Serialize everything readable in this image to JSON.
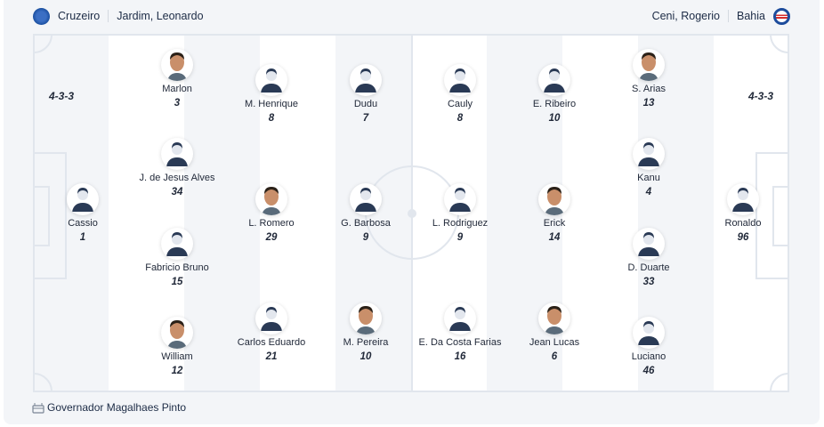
{
  "home": {
    "team": "Cruzeiro",
    "coach": "Jardim, Leonardo",
    "formation": "4-3-3",
    "crest_color": "#1a4fa0"
  },
  "away": {
    "team": "Bahia",
    "coach": "Ceni, Rogerio",
    "formation": "4-3-3",
    "crest_color": "#1d4c9c"
  },
  "venue": "Governador Magalhaes Pinto",
  "players": [
    {
      "name": "Cassio",
      "number": "1",
      "photo": false,
      "col": 0,
      "row": "mid"
    },
    {
      "name": "Marlon",
      "number": "3",
      "photo": true,
      "col": 1,
      "row": "r4a"
    },
    {
      "name": "J. de Jesus Alves",
      "number": "34",
      "photo": false,
      "col": 1,
      "row": "r4b"
    },
    {
      "name": "Fabricio Bruno",
      "number": "15",
      "photo": false,
      "col": 1,
      "row": "r4c"
    },
    {
      "name": "William",
      "number": "12",
      "photo": true,
      "col": 1,
      "row": "r4d"
    },
    {
      "name": "M. Henrique",
      "number": "8",
      "photo": false,
      "col": 2,
      "row": "r3a"
    },
    {
      "name": "L. Romero",
      "number": "29",
      "photo": true,
      "col": 2,
      "row": "mid"
    },
    {
      "name": "Carlos Eduardo",
      "number": "21",
      "photo": false,
      "col": 2,
      "row": "r3c"
    },
    {
      "name": "Dudu",
      "number": "7",
      "photo": false,
      "col": 3,
      "row": "r3a"
    },
    {
      "name": "G. Barbosa",
      "number": "9",
      "photo": false,
      "col": 3,
      "row": "mid"
    },
    {
      "name": "M. Pereira",
      "number": "10",
      "photo": true,
      "col": 3,
      "row": "r3c"
    },
    {
      "name": "Cauly",
      "number": "8",
      "photo": false,
      "col": 4,
      "row": "r3a"
    },
    {
      "name": "L. Rodriguez",
      "number": "9",
      "photo": false,
      "col": 4,
      "row": "mid"
    },
    {
      "name": "E. Da Costa Farias",
      "number": "16",
      "photo": false,
      "col": 4,
      "row": "r3c"
    },
    {
      "name": "E. Ribeiro",
      "number": "10",
      "photo": false,
      "col": 5,
      "row": "r3a"
    },
    {
      "name": "Erick",
      "number": "14",
      "photo": true,
      "col": 5,
      "row": "mid"
    },
    {
      "name": "Jean Lucas",
      "number": "6",
      "photo": true,
      "col": 5,
      "row": "r3c"
    },
    {
      "name": "S. Arias",
      "number": "13",
      "photo": true,
      "col": 6,
      "row": "r4a"
    },
    {
      "name": "Kanu",
      "number": "4",
      "photo": false,
      "col": 6,
      "row": "r4b"
    },
    {
      "name": "D. Duarte",
      "number": "33",
      "photo": false,
      "col": 6,
      "row": "r4c"
    },
    {
      "name": "Luciano",
      "number": "46",
      "photo": false,
      "col": 6,
      "row": "r4d"
    },
    {
      "name": "Ronaldo",
      "number": "96",
      "photo": false,
      "col": 7,
      "row": "mid"
    }
  ]
}
